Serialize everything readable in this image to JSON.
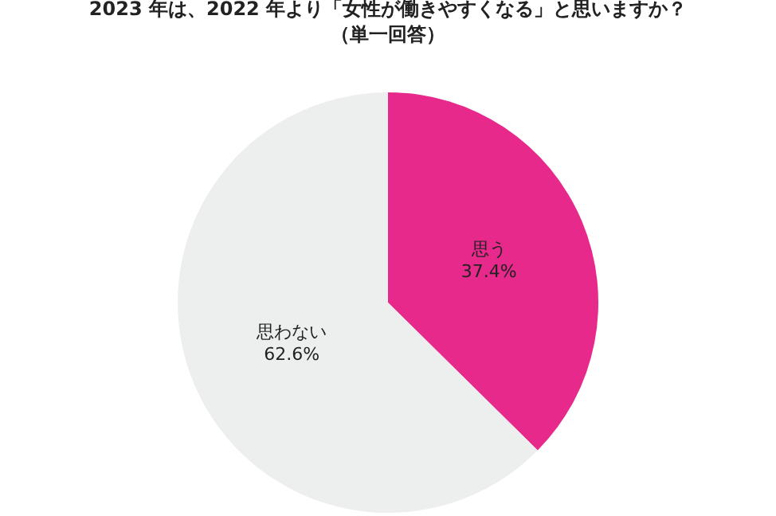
{
  "chart_data": {
    "type": "pie",
    "title": "2023 年は、2022 年より「女性が働きやすくなる」と思いますか？",
    "subtitle": "（単一回答）",
    "categories": [
      "思う",
      "思わない"
    ],
    "values": [
      37.4,
      62.6
    ],
    "colors": [
      "#e6298b",
      "#edeeee"
    ],
    "value_labels": [
      "37.4%",
      "62.6%"
    ],
    "legend": false
  }
}
